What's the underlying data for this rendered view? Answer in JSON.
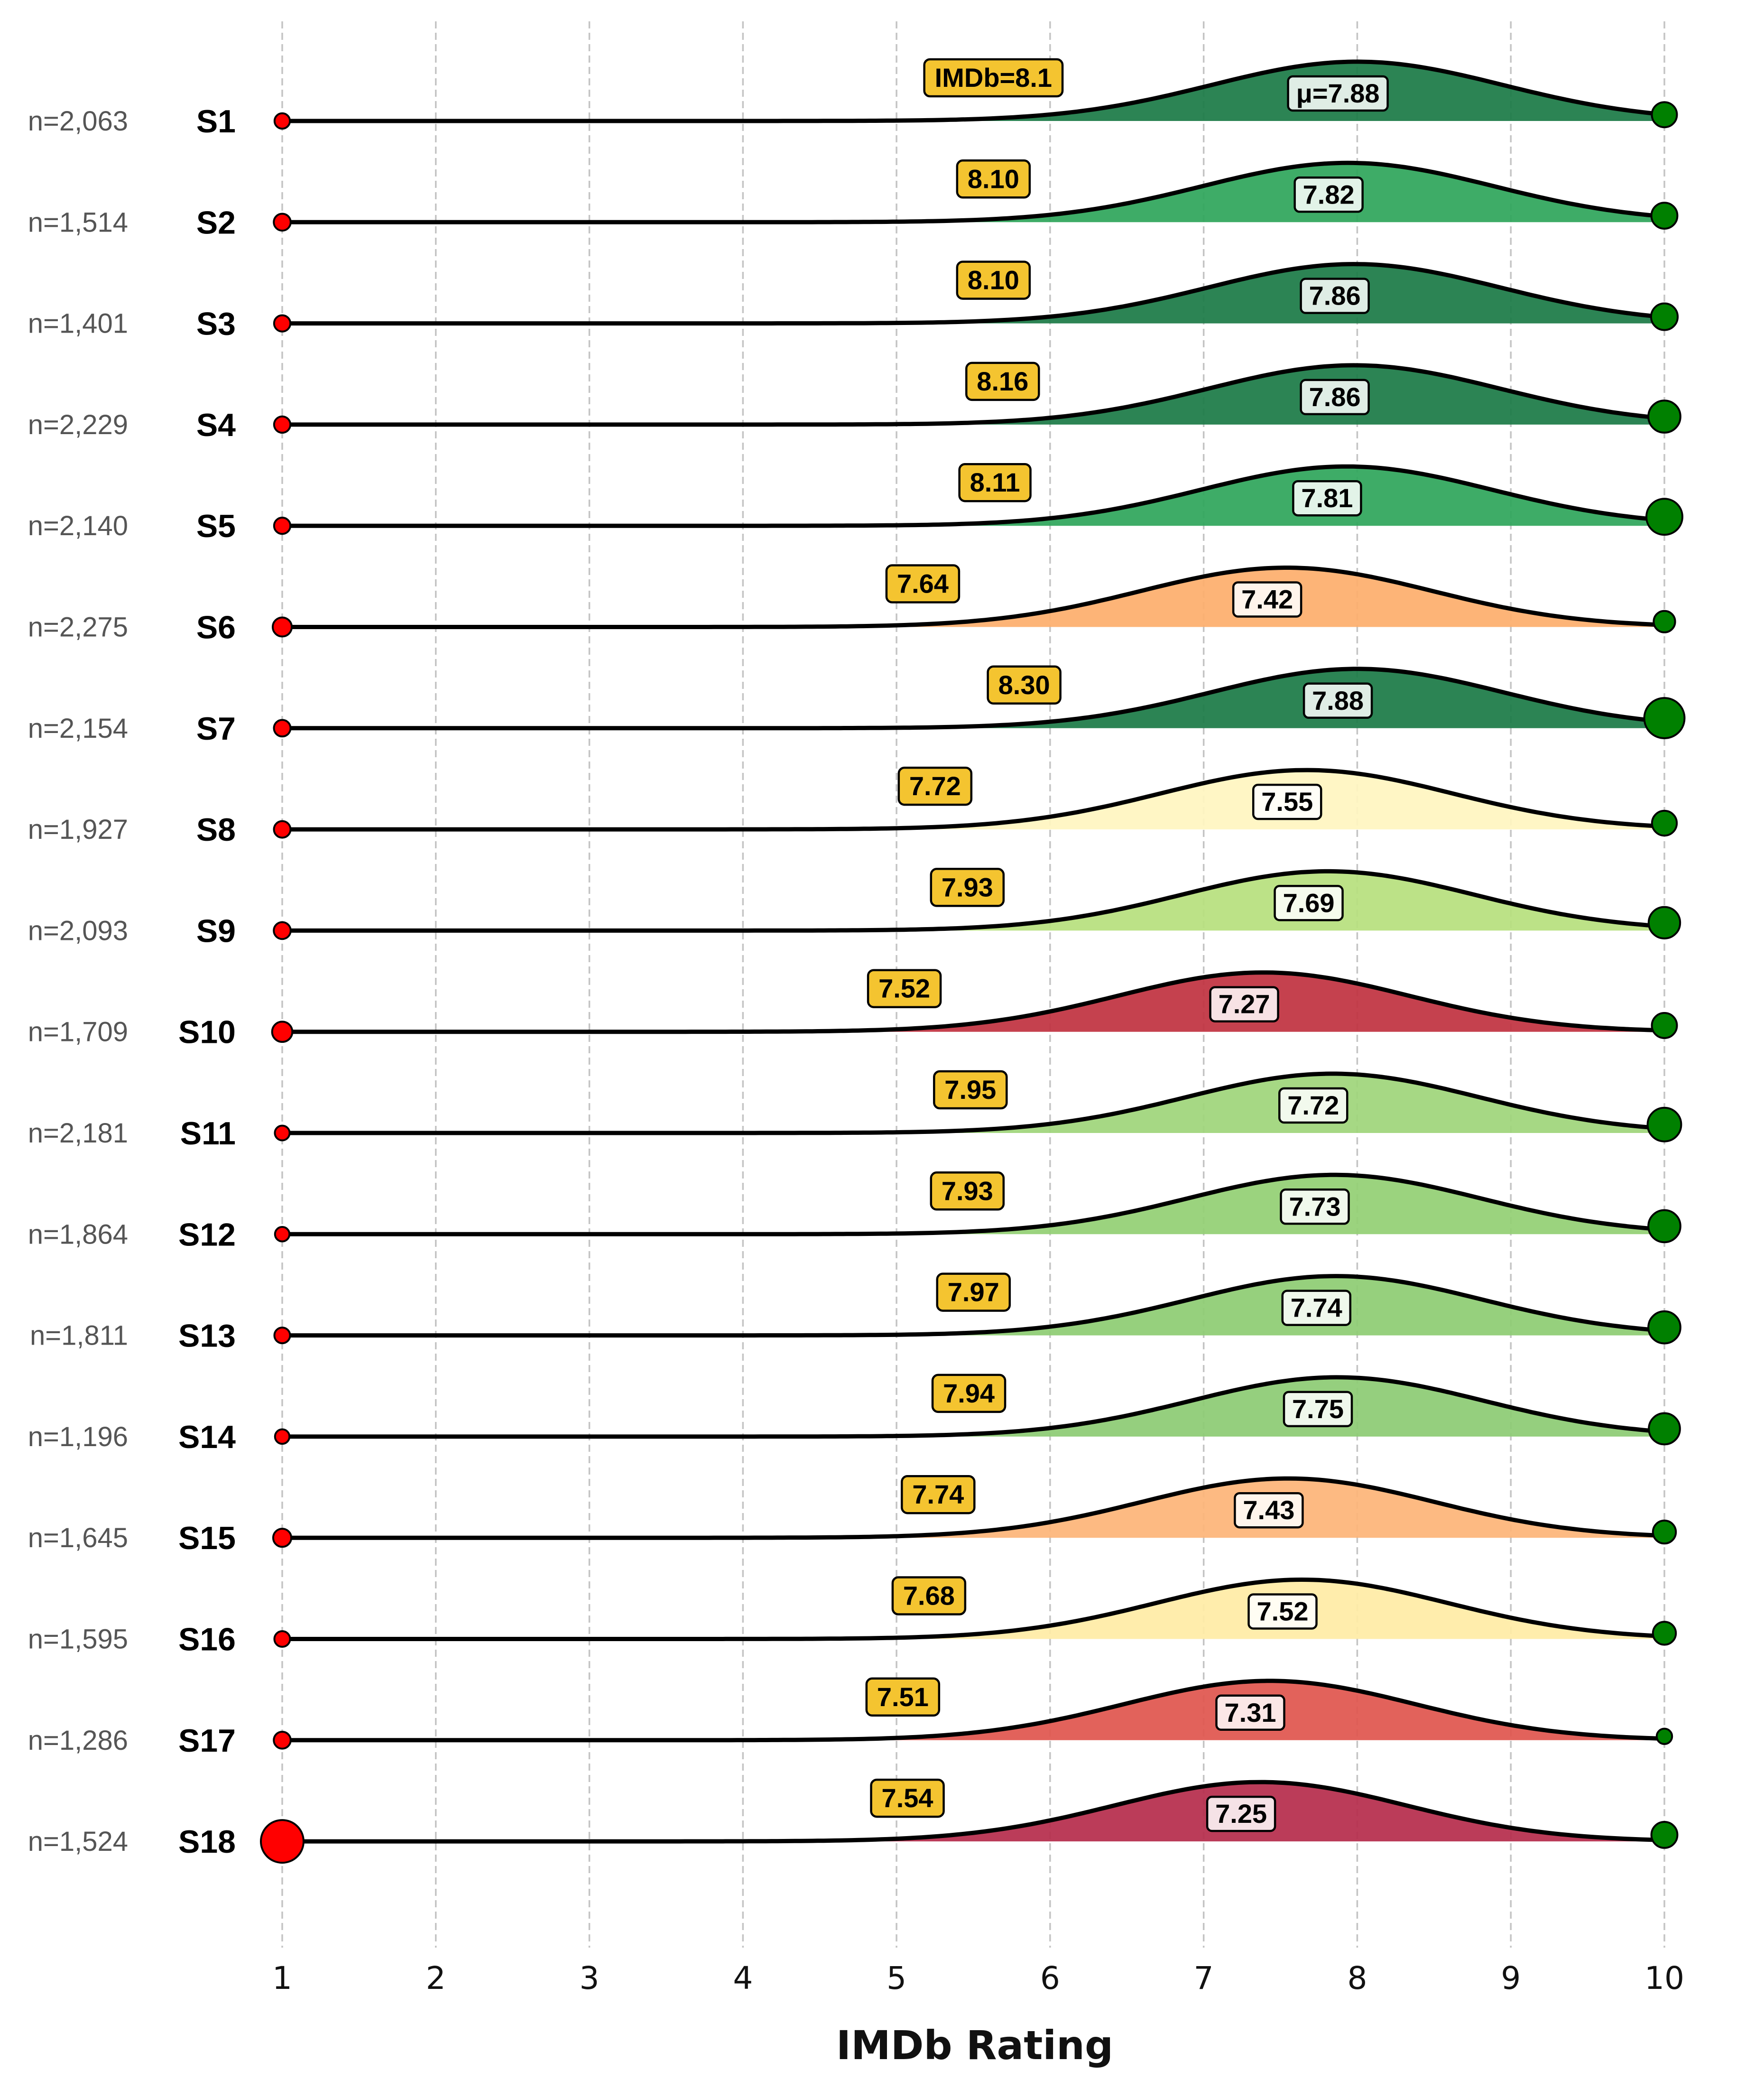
{
  "chart_data": {
    "type": "ridgeline",
    "xlabel": "IMDb Rating",
    "xlim": [
      1,
      10
    ],
    "xticks": [
      1,
      2,
      3,
      4,
      5,
      6,
      7,
      8,
      9,
      10
    ],
    "grid": "vertical dashed",
    "series": [
      {
        "label": "S1",
        "n": 2063,
        "n_label": "n=2,063",
        "mean": 7.88,
        "mean_label": "μ=7.88",
        "imdb": 8.1,
        "imdb_label": "IMDb=8.1",
        "fill": "#1a7a45",
        "low_share": 0.1,
        "high_share": 0.42
      },
      {
        "label": "S2",
        "n": 1514,
        "n_label": "n=1,514",
        "mean": 7.82,
        "mean_label": "7.82",
        "imdb": 8.1,
        "imdb_label": "8.10",
        "fill": "#2ea55a",
        "low_share": 0.15,
        "high_share": 0.45
      },
      {
        "label": "S3",
        "n": 1401,
        "n_label": "n=1,401",
        "mean": 7.86,
        "mean_label": "7.86",
        "imdb": 8.1,
        "imdb_label": "8.10",
        "fill": "#1a7a45",
        "low_share": 0.13,
        "high_share": 0.47
      },
      {
        "label": "S4",
        "n": 2229,
        "n_label": "n=2,229",
        "mean": 7.86,
        "mean_label": "7.86",
        "imdb": 8.16,
        "imdb_label": "8.16",
        "fill": "#1a7a45",
        "low_share": 0.13,
        "high_share": 0.65
      },
      {
        "label": "S5",
        "n": 2140,
        "n_label": "n=2,140",
        "mean": 7.81,
        "mean_label": "7.81",
        "imdb": 8.11,
        "imdb_label": "8.11",
        "fill": "#2ea55a",
        "low_share": 0.13,
        "high_share": 0.78
      },
      {
        "label": "S6",
        "n": 2275,
        "n_label": "n=2,275",
        "mean": 7.42,
        "mean_label": "7.42",
        "imdb": 7.64,
        "imdb_label": "7.64",
        "fill": "#fdae6b",
        "low_share": 0.22,
        "high_share": 0.3
      },
      {
        "label": "S7",
        "n": 2154,
        "n_label": "n=2,154",
        "mean": 7.88,
        "mean_label": "7.88",
        "imdb": 8.3,
        "imdb_label": "8.30",
        "fill": "#1a7a45",
        "low_share": 0.14,
        "high_share": 0.92
      },
      {
        "label": "S8",
        "n": 1927,
        "n_label": "n=1,927",
        "mean": 7.55,
        "mean_label": "7.55",
        "imdb": 7.72,
        "imdb_label": "7.72",
        "fill": "#fff5c0",
        "low_share": 0.14,
        "high_share": 0.41
      },
      {
        "label": "S9",
        "n": 2093,
        "n_label": "n=2,093",
        "mean": 7.69,
        "mean_label": "7.69",
        "imdb": 7.93,
        "imdb_label": "7.93",
        "fill": "#b6e07d",
        "low_share": 0.15,
        "high_share": 0.63
      },
      {
        "label": "S10",
        "n": 1709,
        "n_label": "n=1,709",
        "mean": 7.27,
        "mean_label": "7.27",
        "imdb": 7.52,
        "imdb_label": "7.52",
        "fill": "#c0313f",
        "low_share": 0.26,
        "high_share": 0.42
      },
      {
        "label": "S11",
        "n": 2181,
        "n_label": "n=2,181",
        "mean": 7.72,
        "mean_label": "7.72",
        "imdb": 7.95,
        "imdb_label": "7.95",
        "fill": "#9ed57a",
        "low_share": 0.08,
        "high_share": 0.7
      },
      {
        "label": "S12",
        "n": 1864,
        "n_label": "n=1,864",
        "mean": 7.73,
        "mean_label": "7.73",
        "imdb": 7.93,
        "imdb_label": "7.93",
        "fill": "#93cf73",
        "low_share": 0.07,
        "high_share": 0.65
      },
      {
        "label": "S13",
        "n": 1811,
        "n_label": "n=1,811",
        "mean": 7.74,
        "mean_label": "7.74",
        "imdb": 7.97,
        "imdb_label": "7.97",
        "fill": "#8dcc72",
        "low_share": 0.11,
        "high_share": 0.65
      },
      {
        "label": "S14",
        "n": 1196,
        "n_label": "n=1,196",
        "mean": 7.75,
        "mean_label": "7.75",
        "imdb": 7.94,
        "imdb_label": "7.94",
        "fill": "#8ccb73",
        "low_share": 0.07,
        "high_share": 0.62
      },
      {
        "label": "S15",
        "n": 1645,
        "n_label": "n=1,645",
        "mean": 7.43,
        "mean_label": "7.43",
        "imdb": 7.74,
        "imdb_label": "7.74",
        "fill": "#fdb477",
        "low_share": 0.19,
        "high_share": 0.35
      },
      {
        "label": "S16",
        "n": 1595,
        "n_label": "n=1,595",
        "mean": 7.52,
        "mean_label": "7.52",
        "imdb": 7.68,
        "imdb_label": "7.68",
        "fill": "#ffeca5",
        "low_share": 0.11,
        "high_share": 0.35
      },
      {
        "label": "S17",
        "n": 1286,
        "n_label": "n=1,286",
        "mean": 7.31,
        "mean_label": "7.31",
        "imdb": 7.51,
        "imdb_label": "7.51",
        "fill": "#e0554d",
        "low_share": 0.15,
        "high_share": 0.1
      },
      {
        "label": "S18",
        "n": 1524,
        "n_label": "n=1,524",
        "mean": 7.25,
        "mean_label": "7.25",
        "imdb": 7.54,
        "imdb_label": "7.54",
        "fill": "#b52b4b",
        "low_share": 1.0,
        "high_share": 0.45
      }
    ]
  }
}
